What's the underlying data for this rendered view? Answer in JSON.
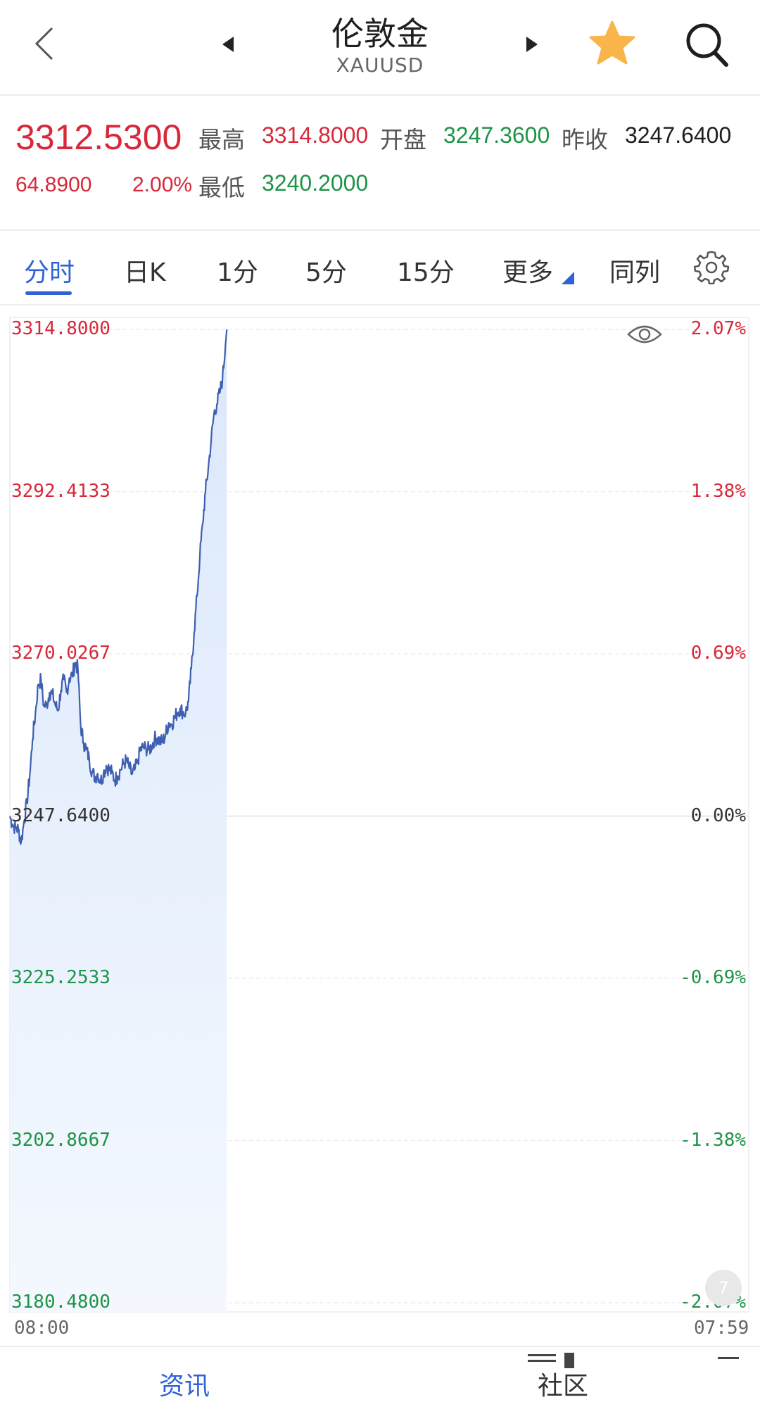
{
  "header": {
    "title": "伦敦金",
    "subtitle": "XAUUSD"
  },
  "quote": {
    "price": "3312.5300",
    "change": "64.8900",
    "change_pct": "2.00%",
    "high_label": "最高",
    "high_value": "3314.8000",
    "open_label": "开盘",
    "open_value": "3247.3600",
    "prev_close_label": "昨收",
    "prev_close_value": "3247.6400",
    "low_label": "最低",
    "low_value": "3240.2000"
  },
  "tabs": [
    {
      "label": "分时",
      "active": true
    },
    {
      "label": "日K"
    },
    {
      "label": "1分"
    },
    {
      "label": "5分"
    },
    {
      "label": "15分"
    },
    {
      "label": "更多"
    },
    {
      "label": "同列"
    }
  ],
  "chart_data": {
    "type": "area",
    "ylim": [
      3180.48,
      3314.8
    ],
    "yticks_left": [
      "3314.8000",
      "3292.4133",
      "3270.0267",
      "3247.6400",
      "3225.2533",
      "3202.8667",
      "3180.4800"
    ],
    "yticks_right": [
      "2.07%",
      "1.38%",
      "0.69%",
      "0.00%",
      "-0.69%",
      "-1.38%",
      "-2.07%"
    ],
    "x_start": "08:00",
    "x_end": "07:59",
    "series": [
      {
        "values": [
          3247.6,
          3246.5,
          3246.0,
          3245.8,
          3244.0,
          3246.9,
          3249.5,
          3253.2,
          3258.2,
          3261.8,
          3265.8,
          3266.5,
          3262.8,
          3263.0,
          3264.7,
          3264.5,
          3263.0,
          3262.2,
          3265.0,
          3266.5,
          3264.7,
          3266.7,
          3267.0,
          3268.8,
          3268.0,
          3260.0,
          3257.8,
          3256.8,
          3255.5,
          3253.8,
          3253.0,
          3253.5,
          3252.4,
          3253.5,
          3254.6,
          3254.1,
          3253.6,
          3252.6,
          3253.2,
          3254.0,
          3254.8,
          3255.3,
          3254.5,
          3253.4,
          3254.0,
          3255.0,
          3256.8,
          3257.1,
          3257.0,
          3256.8,
          3257.3,
          3258.3,
          3258.4,
          3257.9,
          3258.0,
          3259.0,
          3260.5,
          3260.3,
          3261.1,
          3261.9,
          3262.5,
          3262.0,
          3261.9,
          3263.5,
          3268.0,
          3273.0,
          3278.0,
          3283.5,
          3288.0,
          3292.4,
          3295.8,
          3299.5,
          3303.2,
          3304.5,
          3306.0,
          3308.0,
          3312.5
        ]
      }
    ]
  },
  "scroll_badge": "7",
  "bottom_nav": {
    "news": "资讯",
    "community": "社区"
  }
}
